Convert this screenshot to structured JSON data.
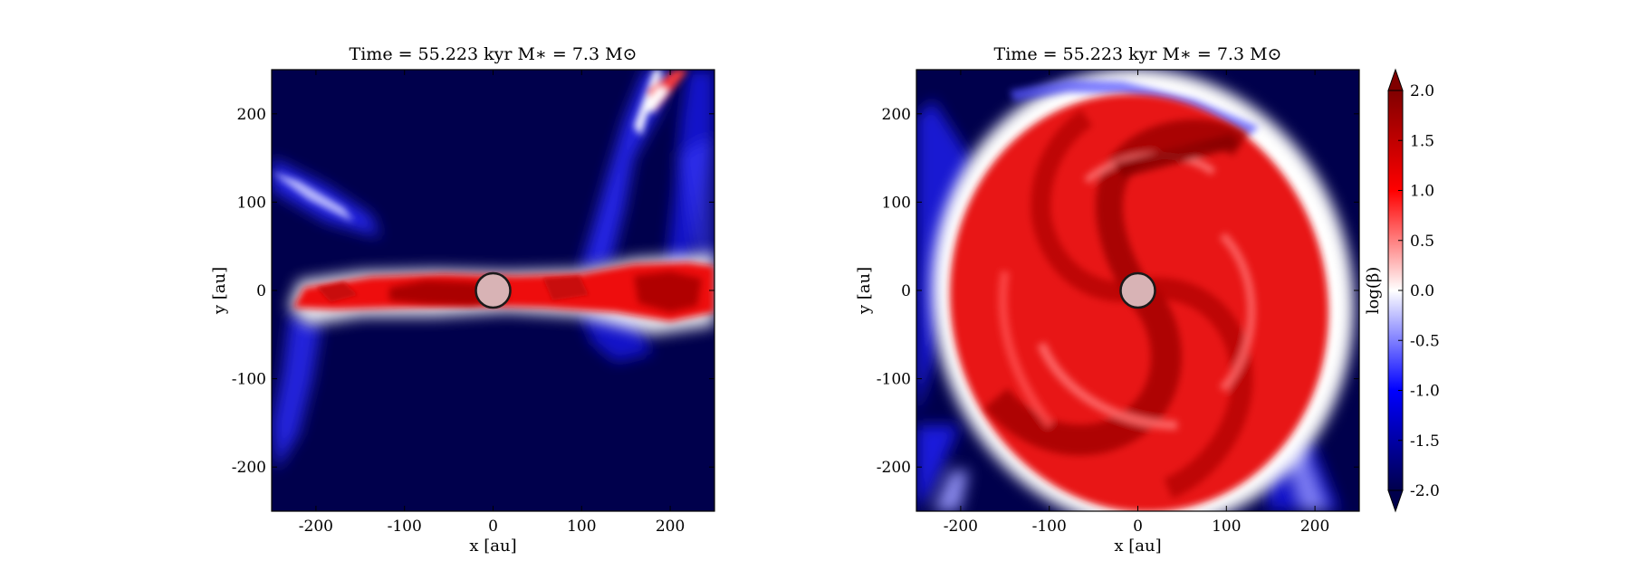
{
  "figure": {
    "colormap": "seismic",
    "colormap_stops": [
      "#00004c",
      "#0000ff",
      "#ffffff",
      "#ff0000",
      "#800000"
    ],
    "sink_fill": "#d8b3b5",
    "sink_stroke": "#1a1a1a"
  },
  "chart_data": [
    {
      "type": "heatmap",
      "title": "Time = 55.223 kyr    M∗ = 7.3 M⊙",
      "xlabel": "x [au]",
      "ylabel": "y [au]",
      "xlim": [
        -250,
        250
      ],
      "ylim": [
        -250,
        250
      ],
      "xticks": [
        -200,
        -100,
        0,
        100,
        200
      ],
      "yticks": [
        200,
        100,
        0,
        -100,
        -200
      ],
      "xtick_labels": [
        "-200",
        "-100",
        "0",
        "100",
        "200"
      ],
      "ytick_labels": [
        "200",
        "100",
        "0",
        "-100",
        "-200"
      ],
      "grid": false,
      "quantity": "log(beta)",
      "background_value": -2.0,
      "features": [
        {
          "kind": "edge-on disk band",
          "x_range": [
            -225,
            250
          ],
          "y_center": 0,
          "value_range": [
            1.0,
            2.0
          ]
        },
        {
          "kind": "outflow cavity wall",
          "direction": "upper-right",
          "x_range": [
            130,
            240
          ],
          "y_range": [
            20,
            250
          ],
          "value": -1.0
        },
        {
          "kind": "outflow cavity wall",
          "direction": "upper-left",
          "x_range": [
            -250,
            -130
          ],
          "y_range": [
            70,
            140
          ],
          "value": -1.0
        },
        {
          "kind": "outflow cavity wall",
          "direction": "lower-left",
          "x_range": [
            -230,
            -160
          ],
          "y_range": [
            -130,
            -20
          ],
          "value": -1.0
        }
      ],
      "sink_particle": {
        "x": 0,
        "y": 0,
        "radius_au": 20
      }
    },
    {
      "type": "heatmap",
      "title": "Time = 55.223 kyr    M∗ = 7.3 M⊙",
      "xlabel": "x [au]",
      "ylabel": "y [au]",
      "xlim": [
        -250,
        250
      ],
      "ylim": [
        -250,
        250
      ],
      "xticks": [
        -200,
        -100,
        0,
        100,
        200
      ],
      "yticks": [
        200,
        100,
        0,
        -100,
        -200
      ],
      "xtick_labels": [
        "-200",
        "-100",
        "0",
        "100",
        "200"
      ],
      "ytick_labels": [
        "200",
        "100",
        "0",
        "-100",
        "-200"
      ],
      "grid": false,
      "quantity": "log(beta)",
      "background_value": -2.0,
      "features": [
        {
          "kind": "face-on disk with spiral arms",
          "x_range": [
            -215,
            220
          ],
          "y_range": [
            -250,
            220
          ],
          "value_range": [
            0.5,
            2.0
          ]
        },
        {
          "kind": "disk edge",
          "value": -1.0
        }
      ],
      "sink_particle": {
        "x": 0,
        "y": 0,
        "radius_au": 20
      }
    }
  ],
  "colorbar": {
    "label": "log(β)",
    "min": -2.0,
    "max": 2.0,
    "extend": "both",
    "ticks": [
      2.0,
      1.5,
      1.0,
      0.5,
      0.0,
      -0.5,
      -1.0,
      -1.5,
      -2.0
    ],
    "tick_labels": [
      "2.0",
      "1.5",
      "1.0",
      "0.5",
      "0.0",
      "-0.5",
      "-1.0",
      "-1.5",
      "-2.0"
    ]
  }
}
